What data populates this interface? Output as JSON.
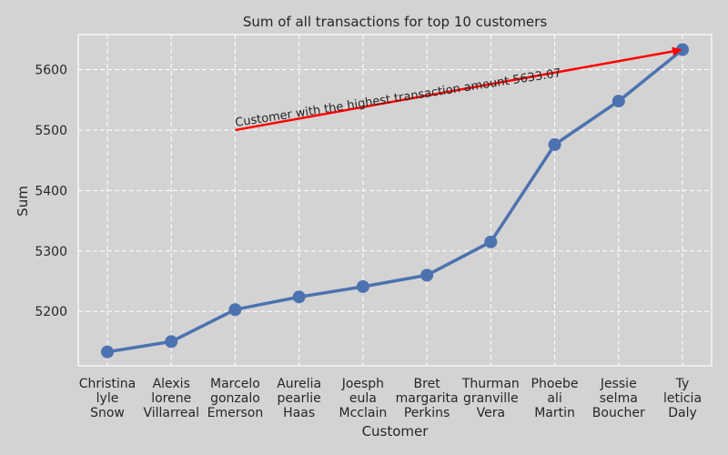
{
  "chart_data": {
    "type": "line",
    "title": "Sum of all transactions for top 10 customers",
    "xlabel": "Customer",
    "ylabel": "Sum",
    "categories": [
      [
        "Christina",
        "lyle",
        "Snow"
      ],
      [
        "Alexis",
        "lorene",
        "Villarreal"
      ],
      [
        "Marcelo",
        "gonzalo",
        "Emerson"
      ],
      [
        "Aurelia",
        "pearlie",
        "Haas"
      ],
      [
        "Joesph",
        "eula",
        "Mcclain"
      ],
      [
        "Bret",
        "margarita",
        "Perkins"
      ],
      [
        "Thurman",
        "granville",
        "Vera"
      ],
      [
        "Phoebe",
        "ali",
        "Martin"
      ],
      [
        "Jessie",
        "selma",
        "Boucher"
      ],
      [
        "Ty",
        "leticia",
        "Daly"
      ]
    ],
    "series": [
      {
        "values": [
          5133,
          5150,
          5203,
          5224,
          5241,
          5260,
          5315,
          5476,
          5548,
          5633.07
        ]
      }
    ],
    "ylim": [
      5110,
      5658
    ],
    "yticks": [
      5200,
      5300,
      5400,
      5500,
      5600
    ],
    "grid": true,
    "annotation": {
      "text": "Customer with the highest transaction amount 5633.07",
      "arrow_from": {
        "category_index": 2,
        "value": 5500
      },
      "arrow_to": {
        "category_index": 9,
        "value": 5633.07
      },
      "color": "#ff0000"
    },
    "colors": {
      "line": "#4c72b0",
      "background": "#d3d3d3",
      "grid": "#ffffff",
      "arrow": "#ff0000"
    }
  }
}
